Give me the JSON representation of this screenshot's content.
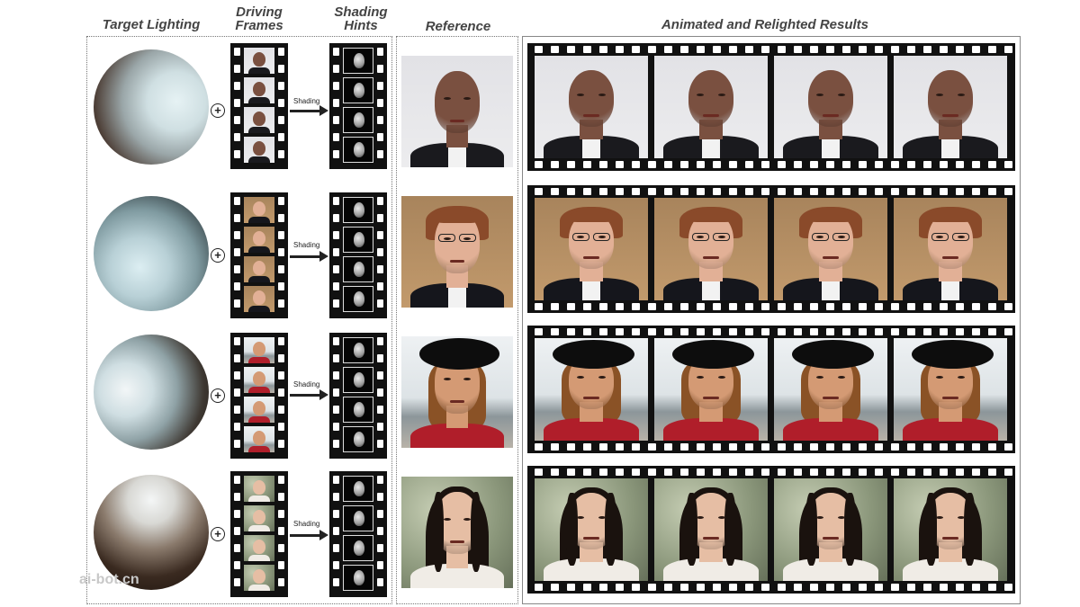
{
  "headers": {
    "target_lighting": "Target Lighting",
    "driving_frames_1": "Driving",
    "driving_frames_2": "Frames",
    "shading_hints_1": "Shading",
    "shading_hints_2": "Hints",
    "reference": "Reference",
    "results": "Animated and Relighted Results"
  },
  "arrow_label": "Shading",
  "plus_symbol": "+",
  "watermark": "ai-bot.cn",
  "rows": [
    {
      "person": "bald man in dark suit",
      "lighting": "light from right"
    },
    {
      "person": "man with glasses and suit",
      "lighting": "light from front"
    },
    {
      "person": "woman with black hat",
      "lighting": "light from left"
    },
    {
      "person": "woman with long dark hair",
      "lighting": "light from top"
    }
  ]
}
